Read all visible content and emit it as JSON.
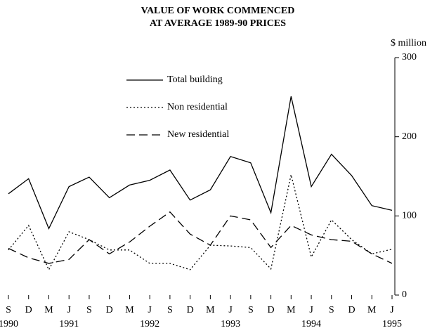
{
  "chart_data": {
    "type": "line",
    "title": "VALUE OF WORK COMMENCED",
    "subtitle": "AT AVERAGE 1989-90 PRICES",
    "y_label": "$ million",
    "categories": [
      "S",
      "D",
      "M",
      "J",
      "S",
      "D",
      "M",
      "J",
      "S",
      "D",
      "M",
      "J",
      "S",
      "D",
      "M",
      "J",
      "S",
      "D",
      "M",
      "J"
    ],
    "years": [
      "1990",
      null,
      null,
      "1991",
      null,
      null,
      null,
      "1992",
      null,
      null,
      null,
      "1993",
      null,
      null,
      null,
      "1994",
      null,
      null,
      null,
      "1995"
    ],
    "series": [
      {
        "name": "Total building",
        "color": "#000000",
        "dash": "solid",
        "values": [
          128,
          147,
          84,
          137,
          149,
          123,
          139,
          145,
          158,
          120,
          133,
          175,
          167,
          104,
          251,
          137,
          178,
          151,
          113,
          107
        ]
      },
      {
        "name": "Non residential",
        "color": "#000000",
        "dash": "dotted",
        "values": [
          57,
          88,
          32,
          80,
          70,
          57,
          57,
          40,
          40,
          32,
          63,
          62,
          60,
          33,
          152,
          48,
          95,
          70,
          52,
          58
        ]
      },
      {
        "name": "New residential",
        "color": "#000000",
        "dash": "dashed",
        "values": [
          59,
          47,
          40,
          45,
          70,
          52,
          67,
          87,
          105,
          77,
          63,
          100,
          95,
          60,
          88,
          76,
          70,
          68,
          52,
          40
        ]
      }
    ],
    "ylim": [
      0,
      300
    ],
    "yticks": [
      0,
      100,
      200,
      300
    ],
    "y_axis_side": "right",
    "grid": false
  }
}
